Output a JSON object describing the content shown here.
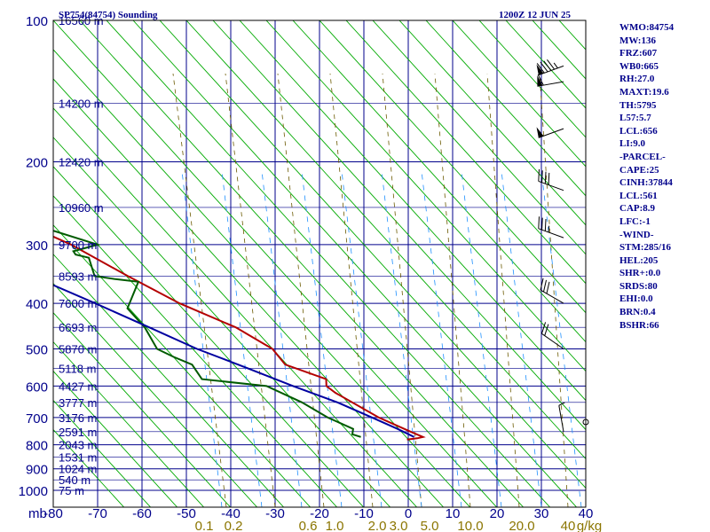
{
  "header": {
    "station": "SP754(84754) Sounding",
    "time": "1200Z 12 JUN 25"
  },
  "indices": [
    "WMO:84754",
    "MW:136",
    "FRZ:607",
    "WB0:665",
    "RH:27.0",
    "MAXT:19.6",
    "TH:5795",
    "L57:5.7",
    "LCL:656",
    "LI:9.0",
    "-PARCEL-",
    "CAPE:25",
    "CINH:37844",
    "LCL:561",
    "CAP:8.9",
    "LFC:-1",
    "-WIND-",
    "STM:285/16",
    "HEL:205",
    "SHR+:0.0",
    "SRDS:80",
    "EHI:0.0",
    "BRN:0.4",
    "BSHR:66"
  ],
  "chart_data": {
    "type": "skew-t",
    "pressure_axis": {
      "unit": "mb",
      "ticks": [
        100,
        200,
        300,
        400,
        500,
        600,
        700,
        800,
        900,
        1000
      ],
      "range": [
        100,
        1000
      ],
      "scale": "log"
    },
    "temperature_axis": {
      "ticks": [
        -80,
        -70,
        -60,
        -50,
        -40,
        -30,
        -20,
        -10,
        0,
        10,
        20,
        30,
        40
      ],
      "range": [
        -80,
        40
      ]
    },
    "height_labels": [
      {
        "p": 100,
        "label": "16560 m"
      },
      {
        "p": 150,
        "label": "14200 m"
      },
      {
        "p": 200,
        "label": "12420 m"
      },
      {
        "p": 250,
        "label": "10960 m"
      },
      {
        "p": 300,
        "label": "9700 m"
      },
      {
        "p": 350,
        "label": "8593 m"
      },
      {
        "p": 400,
        "label": "7600 m"
      },
      {
        "p": 450,
        "label": "6693 m"
      },
      {
        "p": 500,
        "label": "5870 m"
      },
      {
        "p": 550,
        "label": "5118 m"
      },
      {
        "p": 600,
        "label": "4427 m"
      },
      {
        "p": 650,
        "label": "3777 m"
      },
      {
        "p": 700,
        "label": "3176 m"
      },
      {
        "p": 750,
        "label": "2591 m"
      },
      {
        "p": 800,
        "label": "2043 m"
      },
      {
        "p": 850,
        "label": "1531 m"
      },
      {
        "p": 900,
        "label": "1024 m"
      },
      {
        "p": 950,
        "label": "540 m"
      },
      {
        "p": 1000,
        "label": "75 m"
      }
    ],
    "mixing_ratio_labels": [
      "0.1",
      "0.2",
      "0.6",
      "1.0",
      "2.0",
      "3.0",
      "5.0",
      "10.0",
      "20.0",
      "40",
      "g/kg"
    ],
    "series": [
      {
        "color": "#b40000",
        "points": [
          {
            "p": 100,
            "t": -80.0
          },
          {
            "p": 116,
            "t": -73.0
          },
          {
            "p": 130,
            "t": -71.5
          },
          {
            "p": 150,
            "t": -69.5
          },
          {
            "p": 175,
            "t": -62.5
          },
          {
            "p": 190,
            "t": -61.5
          },
          {
            "p": 200,
            "t": -60.0
          },
          {
            "p": 250,
            "t": -49.0
          },
          {
            "p": 300,
            "t": -36.0
          },
          {
            "p": 350,
            "t": -28.0
          },
          {
            "p": 400,
            "t": -20.5
          },
          {
            "p": 450,
            "t": -11.5
          },
          {
            "p": 500,
            "t": -6.5
          },
          {
            "p": 540,
            "t": -6.0
          },
          {
            "p": 580,
            "t": 1.0
          },
          {
            "p": 600,
            "t": 0.0
          },
          {
            "p": 620,
            "t": 1.0
          },
          {
            "p": 700,
            "t": 7.0
          },
          {
            "p": 750,
            "t": 12.0
          },
          {
            "p": 770,
            "t": 14.0
          },
          {
            "p": 775,
            "t": 12.5
          },
          {
            "p": 780,
            "t": 10.0
          }
        ]
      },
      {
        "color": "#005a00",
        "points": [
          {
            "p": 100,
            "t": -100
          },
          {
            "p": 140,
            "t": -80.0
          },
          {
            "p": 150,
            "t": -78.0
          },
          {
            "p": 178,
            "t": -73.5
          },
          {
            "p": 185,
            "t": -61.0
          },
          {
            "p": 200,
            "t": -56.0
          },
          {
            "p": 230,
            "t": -43.0
          },
          {
            "p": 260,
            "t": -44.0
          },
          {
            "p": 280,
            "t": -38.0
          },
          {
            "p": 300,
            "t": -30.0
          },
          {
            "p": 310,
            "t": -36.5
          },
          {
            "p": 315,
            "t": -36.5
          },
          {
            "p": 320,
            "t": -34.0
          },
          {
            "p": 350,
            "t": -35.5
          },
          {
            "p": 355,
            "t": -31.5
          },
          {
            "p": 360,
            "t": -26.5
          },
          {
            "p": 410,
            "t": -33.0
          },
          {
            "p": 450,
            "t": -32.0
          },
          {
            "p": 500,
            "t": -32.5
          },
          {
            "p": 520,
            "t": -30.0
          },
          {
            "p": 540,
            "t": -27.0
          },
          {
            "p": 580,
            "t": -27.0
          },
          {
            "p": 600,
            "t": -13.5
          },
          {
            "p": 650,
            "t": -8.0
          },
          {
            "p": 700,
            "t": -4.5
          },
          {
            "p": 740,
            "t": -0.5
          },
          {
            "p": 760,
            "t": -1.5
          },
          {
            "p": 770,
            "t": 0.0
          }
        ]
      },
      {
        "color": "#0000a0",
        "points": [
          {
            "p": 160,
            "t": -102.0
          },
          {
            "p": 200,
            "t": -88.0
          },
          {
            "p": 250,
            "t": -74.0
          },
          {
            "p": 300,
            "t": -61.0
          },
          {
            "p": 350,
            "t": -49.5
          },
          {
            "p": 400,
            "t": -39.5
          },
          {
            "p": 450,
            "t": -31.0
          },
          {
            "p": 500,
            "t": -23.5
          },
          {
            "p": 550,
            "t": -15.0
          },
          {
            "p": 600,
            "t": -7.5
          },
          {
            "p": 650,
            "t": 0.0
          },
          {
            "p": 700,
            "t": 5.5
          },
          {
            "p": 740,
            "t": 9.5
          },
          {
            "p": 770,
            "t": 12.0
          }
        ]
      }
    ],
    "winds": [
      {
        "p": 125,
        "dir": 250,
        "kt": 95
      },
      {
        "p": 135,
        "dir": 260,
        "kt": 60
      },
      {
        "p": 170,
        "dir": 250,
        "kt": 50
      },
      {
        "p": 230,
        "dir": 290,
        "kt": 40
      },
      {
        "p": 290,
        "dir": 290,
        "kt": 35
      },
      {
        "p": 400,
        "dir": 300,
        "kt": 30
      },
      {
        "p": 500,
        "dir": 305,
        "kt": 20
      },
      {
        "p": 750,
        "dir": 350,
        "kt": 5
      }
    ],
    "grid": true,
    "legend": "none"
  },
  "colors": {
    "isobar": "#00008b",
    "isotherm": "#00008b",
    "dry_adiabat": "#00aa00",
    "moist_adiabat": "#6b5a00",
    "mixing_ratio": "#1e90ff",
    "frame": "#000000"
  }
}
